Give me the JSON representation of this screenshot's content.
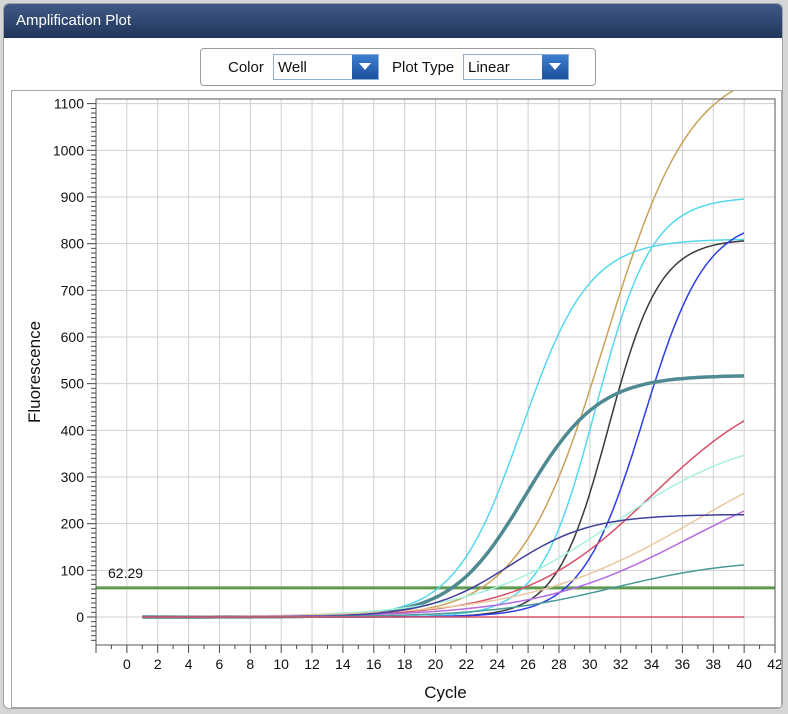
{
  "window": {
    "title": "Amplification Plot"
  },
  "controls": {
    "color_label": "Color",
    "color_value": "Well",
    "plot_type_label": "Plot Type",
    "plot_type_value": "Linear"
  },
  "chart_data": {
    "type": "line",
    "xlabel": "Cycle",
    "ylabel": "Fluorescence",
    "xlim": [
      -2,
      42
    ],
    "ylim": [
      -60,
      1110
    ],
    "x_ticks": [
      0,
      2,
      4,
      6,
      8,
      10,
      12,
      14,
      16,
      18,
      20,
      22,
      24,
      26,
      28,
      30,
      32,
      34,
      36,
      38,
      40,
      42
    ],
    "y_ticks": [
      0,
      100,
      200,
      300,
      400,
      500,
      600,
      700,
      800,
      900,
      1000,
      1100
    ],
    "grid": true,
    "legend": "none",
    "threshold": {
      "value": 62.29,
      "label": "62.29",
      "color": "#5e9a4e"
    },
    "cycles": [
      1,
      40
    ],
    "series": [
      {
        "color": "#c8a25a",
        "max": 1185,
        "mid": 31.0,
        "k": 0.36,
        "width": 1.5
      },
      {
        "color": "#55d8ec",
        "max": 900,
        "mid": 30.4,
        "k": 0.55,
        "width": 1.5
      },
      {
        "color": "#55d8ec",
        "max": 810,
        "mid": 25.6,
        "k": 0.46,
        "width": 1.5
      },
      {
        "color": "#3a3a3a",
        "max": 810,
        "mid": 31.2,
        "k": 0.6,
        "width": 1.5
      },
      {
        "color": "#2e3ee6",
        "max": 855,
        "mid": 33.5,
        "k": 0.5,
        "width": 1.5
      },
      {
        "color": "#4f8a92",
        "max": 518,
        "mid": 25.8,
        "k": 0.42,
        "width": 3.5
      },
      {
        "color": "#d65068",
        "max": 520,
        "mid": 34.0,
        "k": 0.24,
        "width": 1.5
      },
      {
        "color": "#a8f0dc",
        "max": 400,
        "mid": 31.5,
        "k": 0.22,
        "width": 1.5
      },
      {
        "color": "#e8c8a0",
        "max": 420,
        "mid": 37.0,
        "k": 0.18,
        "width": 1.5
      },
      {
        "color": "#b56ae0",
        "max": 340,
        "mid": 36.5,
        "k": 0.2,
        "width": 1.5
      },
      {
        "color": "#40409a",
        "max": 220,
        "mid": 24.8,
        "k": 0.38,
        "width": 1.5
      },
      {
        "color": "#4a9a98",
        "max": 125,
        "mid": 31.5,
        "k": 0.25,
        "width": 1.5
      },
      {
        "color": "#d65068",
        "max": 0,
        "mid": 30.0,
        "k": 0.3,
        "width": 1.5
      }
    ]
  }
}
